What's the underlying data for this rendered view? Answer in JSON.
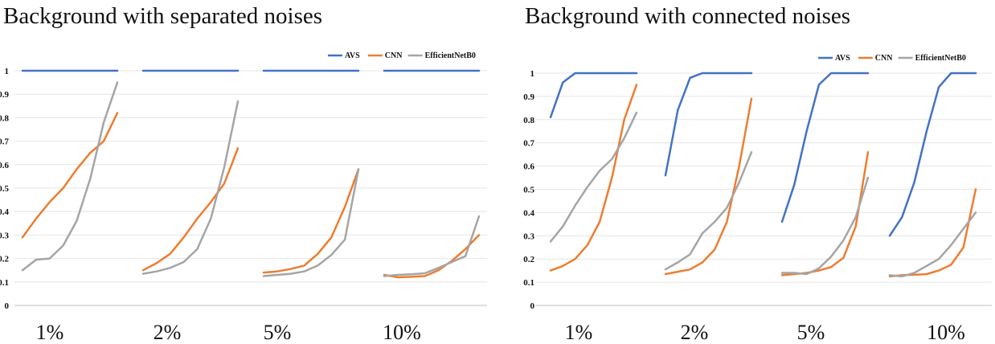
{
  "titles": {
    "left": "Background with separated noises",
    "right": "Background with connected noises"
  },
  "colors": {
    "AVS": "#4472c4",
    "CNN": "#ed7d31",
    "EfficientNetB0": "#a5a5a5"
  },
  "chart_data": [
    {
      "type": "line",
      "title": "Background with separated noises",
      "groups": [
        "1%",
        "2%",
        "5%",
        "10%"
      ],
      "points_per_group": 8,
      "ylim": [
        0,
        1
      ],
      "yticks": [
        "0",
        "0.1",
        "0.2",
        "0.3",
        "0.4",
        "0.5",
        "0.6",
        "0.7",
        "0.8",
        "0.9",
        "1"
      ],
      "grid": true,
      "legend": "top-right",
      "series": [
        {
          "name": "AVS",
          "groups": [
            [
              1,
              1,
              1,
              1,
              1,
              1,
              1,
              1
            ],
            [
              1,
              1,
              1,
              1,
              1,
              1,
              1,
              1
            ],
            [
              1,
              1,
              1,
              1,
              1,
              1,
              1,
              1
            ],
            [
              1,
              1,
              1,
              1,
              1,
              1,
              1,
              1
            ]
          ]
        },
        {
          "name": "CNN",
          "groups": [
            [
              0.29,
              0.37,
              0.44,
              0.5,
              0.58,
              0.65,
              0.7,
              0.82
            ],
            [
              0.15,
              0.18,
              0.22,
              0.29,
              0.37,
              0.44,
              0.52,
              0.67
            ],
            [
              0.14,
              0.145,
              0.155,
              0.17,
              0.22,
              0.29,
              0.42,
              0.58
            ],
            [
              0.13,
              0.12,
              0.122,
              0.125,
              0.15,
              0.19,
              0.24,
              0.3
            ]
          ]
        },
        {
          "name": "EfficientNetB0",
          "groups": [
            [
              0.15,
              0.195,
              0.2,
              0.255,
              0.36,
              0.54,
              0.78,
              0.95
            ],
            [
              0.135,
              0.145,
              0.16,
              0.185,
              0.24,
              0.37,
              0.59,
              0.87
            ],
            [
              0.125,
              0.13,
              0.135,
              0.145,
              0.17,
              0.215,
              0.28,
              0.58
            ],
            [
              0.125,
              0.13,
              0.133,
              0.137,
              0.16,
              0.185,
              0.21,
              0.38
            ]
          ]
        }
      ]
    },
    {
      "type": "line",
      "title": "Background with connected noises",
      "groups": [
        "1%",
        "2%",
        "5%",
        "10%"
      ],
      "points_per_group": 8,
      "ylim": [
        0,
        1
      ],
      "yticks": [
        "0",
        "0.1",
        "0.2",
        "0.3",
        "0.4",
        "0.5",
        "0.6",
        "0.7",
        "0.8",
        "0.9",
        "1"
      ],
      "grid": true,
      "legend": "top-right",
      "series": [
        {
          "name": "AVS",
          "groups": [
            [
              0.81,
              0.96,
              1,
              1,
              1,
              1,
              1,
              1
            ],
            [
              0.56,
              0.84,
              0.98,
              1,
              1,
              1,
              1,
              1
            ],
            [
              0.36,
              0.52,
              0.75,
              0.95,
              1,
              1,
              1,
              1
            ],
            [
              0.3,
              0.38,
              0.53,
              0.75,
              0.94,
              1,
              1,
              1
            ]
          ]
        },
        {
          "name": "CNN",
          "groups": [
            [
              0.15,
              0.17,
              0.2,
              0.26,
              0.36,
              0.55,
              0.8,
              0.95
            ],
            [
              0.135,
              0.145,
              0.155,
              0.185,
              0.24,
              0.36,
              0.6,
              0.89
            ],
            [
              0.13,
              0.135,
              0.14,
              0.15,
              0.165,
              0.205,
              0.34,
              0.66
            ],
            [
              0.125,
              0.13,
              0.132,
              0.135,
              0.15,
              0.175,
              0.25,
              0.5
            ]
          ]
        },
        {
          "name": "EfficientNetB0",
          "groups": [
            [
              0.275,
              0.34,
              0.43,
              0.51,
              0.58,
              0.63,
              0.72,
              0.83
            ],
            [
              0.155,
              0.185,
              0.22,
              0.31,
              0.36,
              0.42,
              0.53,
              0.66
            ],
            [
              0.14,
              0.14,
              0.135,
              0.16,
              0.21,
              0.28,
              0.38,
              0.55
            ],
            [
              0.13,
              0.125,
              0.14,
              0.17,
              0.2,
              0.26,
              0.33,
              0.4
            ]
          ]
        }
      ]
    }
  ]
}
